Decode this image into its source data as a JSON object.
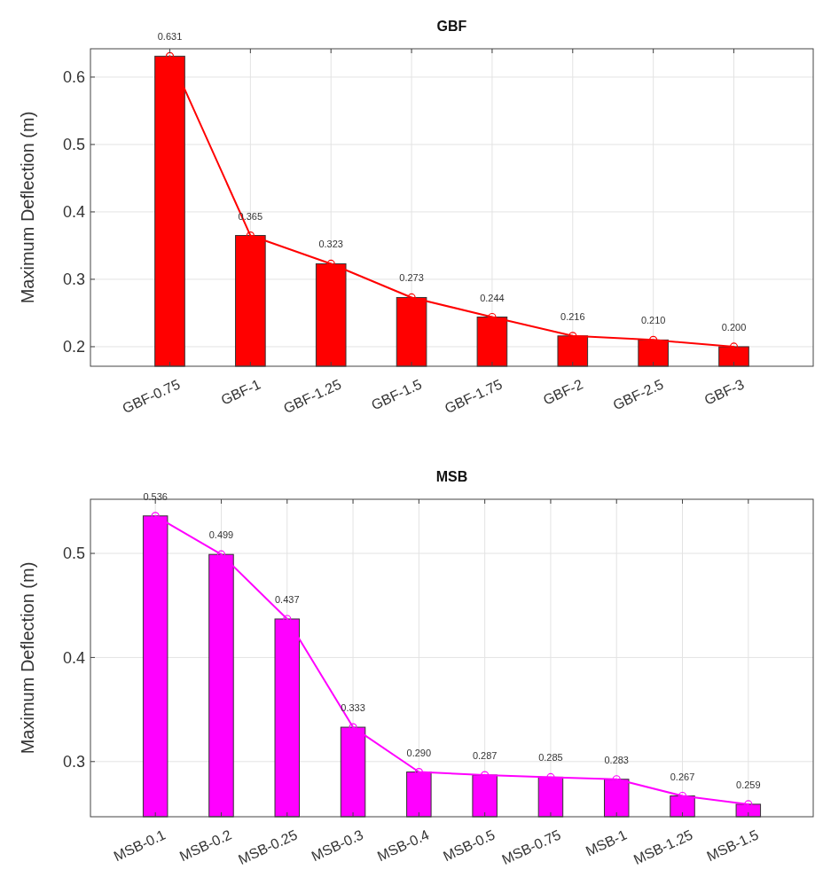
{
  "chart_data": [
    {
      "type": "bar",
      "title": "GBF",
      "ylabel": "Maximum Deflection (m)",
      "categories": [
        "GBF-0.75",
        "GBF-1",
        "GBF-1.25",
        "GBF-1.5",
        "GBF-1.75",
        "GBF-2",
        "GBF-2.5",
        "GBF-3"
      ],
      "series": [
        {
          "color": "#ff0000",
          "values": [
            0.631,
            0.365,
            0.323,
            0.273,
            0.244,
            0.216,
            0.21,
            0.2
          ]
        },
        {
          "type": "line",
          "color": "#ff0000",
          "values": [
            0.631,
            0.365,
            0.323,
            0.273,
            0.244,
            0.216,
            0.21,
            0.2
          ],
          "value_labels": [
            "0.631",
            "0.365",
            "0.323",
            "0.273",
            "0.244",
            "0.216",
            "0.210",
            "0.200"
          ]
        }
      ],
      "ylim": [
        0.171,
        0.642
      ],
      "yticks": [
        0.2,
        0.3,
        0.4,
        0.5,
        0.6
      ],
      "grid": true,
      "marker": "circle"
    },
    {
      "type": "bar",
      "title": "MSB",
      "ylabel": "Maximum Deflection (m)",
      "categories": [
        "MSB-0.1",
        "MSB-0.2",
        "MSB-0.25",
        "MSB-0.3",
        "MSB-0.4",
        "MSB-0.5",
        "MSB-0.75",
        "MSB-1",
        "MSB-1.25",
        "MSB-1.5"
      ],
      "series": [
        {
          "color": "#ff00ff",
          "values": [
            0.536,
            0.499,
            0.437,
            0.333,
            0.29,
            0.287,
            0.285,
            0.283,
            0.267,
            0.259
          ]
        },
        {
          "type": "line",
          "color": "#ff00ff",
          "values": [
            0.536,
            0.499,
            0.437,
            0.333,
            0.29,
            0.287,
            0.285,
            0.283,
            0.267,
            0.259
          ],
          "value_labels": [
            "0.536",
            "0.499",
            "0.437",
            "0.333",
            "0.290",
            "0.287",
            "0.285",
            "0.283",
            "0.267",
            "0.259"
          ]
        }
      ],
      "ylim": [
        0.247,
        0.552
      ],
      "yticks": [
        0.3,
        0.4,
        0.5
      ],
      "grid": true,
      "marker": "circle"
    }
  ]
}
